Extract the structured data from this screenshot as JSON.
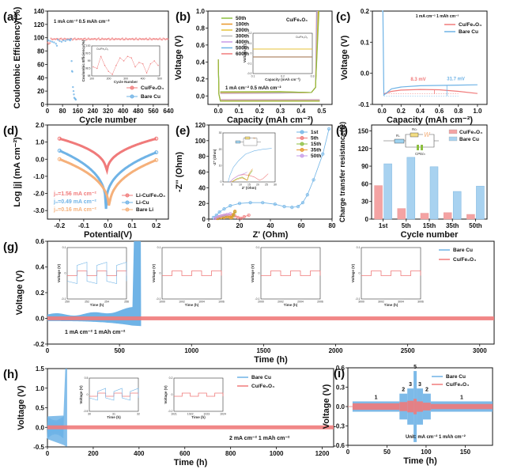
{
  "colors": {
    "blue": "#6fb3e6",
    "red": "#f07a7a",
    "orange": "#f5b07a",
    "green": "#8cbf3f",
    "gold": "#e6c23a",
    "purple": "#c79be8",
    "gray": "#bdbdbd",
    "darkorange": "#e8962a"
  },
  "chart_data": [
    {
      "id": "a",
      "panel_label": "(a)",
      "type": "scatter",
      "xlabel": "Cycle number",
      "ylabel": "Coulombic Efficiency(%)",
      "xlim": [
        0,
        640
      ],
      "ylim": [
        0,
        140
      ],
      "xticks": [
        0,
        80,
        160,
        240,
        320,
        400,
        480,
        560,
        640
      ],
      "yticks": [
        0,
        20,
        40,
        60,
        80,
        100,
        120,
        140
      ],
      "annotation": "1 mA cm⁻²  0.5 mAh cm⁻²",
      "series": [
        {
          "name": "Cu/Fe₃O₄",
          "color": "#f07a7a",
          "x_range": [
            1,
            640
          ],
          "mean": 98,
          "values_note": "≈97.5-99.5 stable"
        },
        {
          "name": "Bare Cu",
          "color": "#6fb3e6",
          "points": [
            [
              5,
              96
            ],
            [
              15,
              95
            ],
            [
              25,
              94
            ],
            [
              35,
              93
            ],
            [
              45,
              91
            ],
            [
              50,
              88
            ],
            [
              55,
              97
            ],
            [
              65,
              95
            ],
            [
              75,
              94
            ],
            [
              85,
              96
            ],
            [
              95,
              95
            ],
            [
              105,
              97
            ],
            [
              115,
              97
            ],
            [
              120,
              96
            ],
            [
              125,
              98
            ],
            [
              128,
              65
            ],
            [
              130,
              50
            ],
            [
              132,
              49
            ],
            [
              135,
              26
            ],
            [
              138,
              20
            ],
            [
              140,
              15
            ],
            [
              142,
              10
            ],
            [
              145,
              9
            ],
            [
              148,
              8
            ],
            [
              150,
              7
            ]
          ]
        }
      ],
      "inset": {
        "legend": "Cu/Fe₃O₄",
        "xlabel": "Cycle Number",
        "ylabel": "Coulombic Efficiency(%)",
        "xticks": [
          100,
          200,
          300,
          400,
          500
        ],
        "yticks": [
          98.0,
          98.5,
          99.0,
          99.5,
          100.0
        ],
        "values": [
          98.6,
          98.5,
          99.3,
          98.7,
          98.3,
          98.1,
          98.7,
          99.2,
          99.0,
          99.3,
          99.2,
          98.6,
          98.9,
          98.8,
          98.2,
          98.8,
          99.0,
          98.7
        ]
      }
    },
    {
      "id": "b",
      "panel_label": "(b)",
      "type": "line",
      "xlabel": "Capacity (mAh cm⁻²)",
      "ylabel": "Voltage (V)",
      "xlim": [
        -0.05,
        0.55
      ],
      "ylim": [
        -0.1,
        1.0
      ],
      "xticks": [
        0.0,
        0.1,
        0.2,
        0.3,
        0.4,
        0.5
      ],
      "yticks": [
        0.0,
        0.2,
        0.4,
        0.6,
        0.8,
        1.0
      ],
      "title": "Cu/Fe₃O₄",
      "annotation": "1  mA cm⁻² 0.5 mAh cm⁻²",
      "series": [
        {
          "name": "50th",
          "color": "#8cbf3f"
        },
        {
          "name": "100th",
          "color": "#e8962a"
        },
        {
          "name": "200th",
          "color": "#e6c23a"
        },
        {
          "name": "300th",
          "color": "#bdbdbd"
        },
        {
          "name": "400th",
          "color": "#c79be8"
        },
        {
          "name": "500th",
          "color": "#6fb3e6"
        },
        {
          "name": "600th",
          "color": "#f07a7a"
        }
      ],
      "plating_voltage": -0.045,
      "stripping_voltage": 0.035,
      "inset": {
        "title": "Cu/Fe₃O₄",
        "xlabel": "Capacity (mAh cm⁻²)",
        "ylabel": "Voltage (V)",
        "xticks": [
          0.1,
          0.2,
          0.3
        ],
        "yticks": [
          -0.2,
          -0.1,
          0.0,
          0.1,
          0.2
        ]
      }
    },
    {
      "id": "c",
      "panel_label": "(c)",
      "type": "line",
      "xlabel": "Capacity (mAh cm⁻²)",
      "ylabel": "Voltage (V)",
      "xlim": [
        -0.1,
        1.1
      ],
      "ylim": [
        -0.1,
        0.2
      ],
      "xticks": [
        0.0,
        0.2,
        0.4,
        0.6,
        0.8,
        1.0
      ],
      "yticks": [
        -0.1,
        0.0,
        0.1,
        0.2
      ],
      "annotation": "1 mA cm⁻²  1 mAh cm⁻²",
      "labels": [
        "8.3 mV",
        "31.7 mV"
      ],
      "series": [
        {
          "name": "Cu/Fe₃O₄",
          "color": "#f07a7a",
          "x": [
            0.02,
            0.1,
            0.2,
            0.4,
            0.6,
            0.8,
            1.0
          ],
          "y": [
            -0.066,
            -0.058,
            -0.054,
            -0.052,
            -0.053,
            -0.058,
            -0.065
          ]
        },
        {
          "name": "Bare Cu",
          "color": "#6fb3e6",
          "x": [
            0.0,
            0.01,
            0.02,
            0.1,
            0.2,
            0.4,
            0.6,
            0.8,
            1.0
          ],
          "y": [
            0.2,
            0.2,
            -0.07,
            -0.05,
            -0.044,
            -0.04,
            -0.039,
            -0.038,
            -0.037
          ]
        }
      ]
    },
    {
      "id": "d",
      "panel_label": "(d)",
      "type": "line",
      "xlabel": "Potential(V)",
      "ylabel": "Log |j| (mA cm⁻²)",
      "xlim": [
        -0.25,
        0.25
      ],
      "ylim": [
        -3.5,
        2.0
      ],
      "xticks": [
        -0.2,
        -0.1,
        0.0,
        0.1,
        0.2
      ],
      "yticks": [
        -3.0,
        -2.0,
        -1.0,
        0.0,
        1.0,
        2.0
      ],
      "annotations": [
        "j₀=1.56 mA cm⁻²",
        "j₀=0.49 mA cm⁻²",
        "j₀=0.16 mA cm⁻²"
      ],
      "series": [
        {
          "name": "Li-Cu/Fe₃O₄",
          "color": "#f07a7a",
          "left": 1.2,
          "right": 1.2,
          "min": -1.0,
          "center": -0.005
        },
        {
          "name": "Li-Cu",
          "color": "#6fb3e6",
          "left": 0.5,
          "right": 0.4,
          "min": -2.9,
          "center": -0.008
        },
        {
          "name": "Bare Li",
          "color": "#f5b07a",
          "left": 0.0,
          "right": -0.05,
          "min": -3.2,
          "center": 0.005
        }
      ]
    },
    {
      "id": "e",
      "panel_label": "(e)",
      "type": "scatter",
      "xlabel": "Z' (Ohm)",
      "ylabel": "-Z'' (Ohm)",
      "xlim": [
        0,
        80
      ],
      "ylim": [
        0,
        120
      ],
      "xticks": [
        0,
        20,
        40,
        60,
        80
      ],
      "yticks": [
        0,
        20,
        40,
        60,
        80,
        100,
        120
      ],
      "series": [
        {
          "name": "1st",
          "color": "#6fb3e6",
          "x": [
            3,
            5,
            7,
            10,
            14,
            20,
            27,
            35,
            43,
            49,
            54,
            58,
            61,
            64,
            68,
            74,
            78
          ],
          "y": [
            2,
            5,
            9,
            13,
            17,
            20,
            21,
            21,
            19,
            16,
            15,
            16,
            21,
            31,
            50,
            83,
            115
          ]
        },
        {
          "name": "5th",
          "color": "#f07a7a",
          "x": [
            5,
            7,
            9,
            11,
            13,
            15,
            17,
            19,
            21,
            23,
            26
          ],
          "y": [
            1,
            3,
            4,
            5,
            5,
            5,
            4,
            2,
            1,
            3,
            5
          ]
        },
        {
          "name": "15th",
          "color": "#8cbf3f",
          "x": [
            6,
            8,
            10,
            12,
            14,
            15,
            16,
            17
          ],
          "y": [
            1,
            2,
            3,
            3,
            2,
            2,
            5,
            9
          ]
        },
        {
          "name": "35th",
          "color": "#e8962a",
          "x": [
            6,
            8,
            10,
            12,
            14,
            15,
            16,
            17
          ],
          "y": [
            1,
            2,
            2,
            3,
            2,
            2,
            6,
            10
          ]
        },
        {
          "name": "50th",
          "color": "#c79be8",
          "x": [
            4,
            6,
            8,
            10,
            12,
            14
          ],
          "y": [
            1,
            3,
            4,
            5,
            6,
            7
          ]
        }
      ],
      "inset": {
        "xlabel": "Z' (Ohm)",
        "ylabel": "-Z'' (Ohm)",
        "xticks": [
          0,
          5,
          10,
          15,
          20,
          25,
          30
        ],
        "yticks": [
          0,
          10,
          20,
          30
        ],
        "circuit": [
          "Rₛ",
          "Rᴄₜ",
          "W",
          "CPEᴅₗ"
        ]
      }
    },
    {
      "id": "f",
      "panel_label": "(f)",
      "type": "bar",
      "xlabel": "Cycle number",
      "ylabel": "Charge transfer resistance(Ω)",
      "ylim": [
        0,
        160
      ],
      "yticks": [
        0,
        30,
        60,
        90,
        120,
        150
      ],
      "categories": [
        "1st",
        "5th",
        "15th",
        "35th",
        "50th"
      ],
      "series": [
        {
          "name": "Cu/Fe₃O₄",
          "color": "#f4a3a3",
          "values": [
            57,
            18,
            10,
            11,
            8
          ]
        },
        {
          "name": "Bare Cu",
          "color": "#a8d2f0",
          "values": [
            94,
            105,
            89,
            47,
            56
          ]
        }
      ],
      "circuit": {
        "rs": "Rₛ",
        "rct": "Rᴄₜ",
        "w": "W",
        "cpe": "CPEᴅₗ"
      }
    },
    {
      "id": "g",
      "panel_label": "(g)",
      "type": "line",
      "xlabel": "Time (h)",
      "ylabel": "Voltage (V)",
      "xlim": [
        0,
        3100
      ],
      "ylim": [
        -0.2,
        0.6
      ],
      "xticks": [
        0,
        500,
        1000,
        1500,
        2000,
        2500,
        3000
      ],
      "yticks": [
        -0.2,
        0.0,
        0.2,
        0.4,
        0.6
      ],
      "annotation": "1 mA cm⁻²    1 mAh cm⁻²",
      "series": [
        {
          "name": "Bare Cu",
          "color": "#6fb3e6",
          "end_time": 650,
          "amplitude_start": 0.03,
          "amplitude_end": 0.08
        },
        {
          "name": "Cu/Fe₃O₄",
          "color": "#f07a7a",
          "end_time": 3100,
          "amplitude": 0.015
        }
      ],
      "insets": [
        {
          "xticks": [
            250,
            252,
            254,
            256
          ],
          "xlabel": "Time (h)",
          "ylabel": "Voltage (V)",
          "yticks": [
            -0.1,
            0.0,
            0.1
          ],
          "bare_cu": true
        },
        {
          "xticks": [
            1000,
            1002,
            1004,
            1006
          ],
          "xlabel": "Time (h)",
          "ylabel": "Voltage (V)",
          "yticks": [
            -0.1,
            0.0,
            0.1
          ],
          "bare_cu": false
        },
        {
          "xticks": [
            2000,
            2002,
            2004,
            2006
          ],
          "xlabel": "Time (h)",
          "ylabel": "Voltage (V)",
          "yticks": [
            -0.1,
            0.0,
            0.1
          ],
          "bare_cu": false
        },
        {
          "xticks": [
            3000,
            3002,
            3004,
            3006
          ],
          "xlabel": "Time (h)",
          "ylabel": "Voltage (V)",
          "yticks": [
            -0.1,
            0.0,
            0.1
          ],
          "bare_cu": false
        }
      ]
    },
    {
      "id": "h",
      "panel_label": "(h)",
      "type": "line",
      "xlabel": "Time (h)",
      "ylabel": "Voltage (V)",
      "xlim": [
        0,
        1250
      ],
      "ylim": [
        -0.5,
        1.5
      ],
      "xticks": [
        0,
        200,
        400,
        600,
        800,
        1000,
        1200
      ],
      "yticks": [
        -0.5,
        0.0,
        0.5,
        1.0,
        1.5
      ],
      "annotation": "2 mA cm⁻²    1 mAh cm⁻²",
      "series": [
        {
          "name": "Bare Cu",
          "color": "#6fb3e6",
          "end_time": 85,
          "amplitude": 0.3
        },
        {
          "name": "Cu/Fe₃O₄",
          "color": "#f07a7a",
          "end_time": 1250,
          "amplitude": 0.03
        }
      ],
      "insets": [
        {
          "xticks": [
            30,
            31,
            32
          ],
          "xlabel": "Time (h)",
          "ylabel": "Voltage (V)",
          "yticks": [
            -0.5,
            0.0,
            0.5
          ],
          "bare_cu": true
        },
        {
          "xticks": [
            1021,
            1022,
            1023,
            1024
          ],
          "xlabel": "Time (h)",
          "ylabel": "Voltage (V)",
          "yticks": [
            -0.2,
            0.0,
            0.2
          ],
          "bare_cu": false
        }
      ]
    },
    {
      "id": "i",
      "panel_label": "(i)",
      "type": "line",
      "xlabel": "Time (h)",
      "ylabel": "Voltage (V)",
      "xlim": [
        0,
        185
      ],
      "ylim": [
        -0.6,
        0.6
      ],
      "xticks": [
        0,
        50,
        100,
        150
      ],
      "yticks": [
        -0.6,
        -0.3,
        0.0,
        0.3,
        0.6
      ],
      "annotation": "Unit:  mA cm⁻²    1 mAh cm⁻²",
      "rate_steps": [
        {
          "label": "1",
          "t0": 6,
          "t1": 66,
          "bare": 0.08,
          "fe": 0.05
        },
        {
          "label": "2",
          "t0": 66,
          "t1": 76,
          "bare": 0.2,
          "fe": 0.07
        },
        {
          "label": "3",
          "t0": 76,
          "t1": 84,
          "bare": 0.28,
          "fe": 0.09
        },
        {
          "label": "5",
          "t0": 84,
          "t1": 88,
          "bare": 0.55,
          "fe": 0.12
        },
        {
          "label": "3",
          "t0": 88,
          "t1": 96,
          "bare": 0.28,
          "fe": 0.08
        },
        {
          "label": "2",
          "t0": 96,
          "t1": 106,
          "bare": 0.2,
          "fe": 0.06
        },
        {
          "label": "1",
          "t0": 106,
          "t1": 185,
          "bare": 0.08,
          "fe": 0.04
        }
      ],
      "series": [
        {
          "name": "Bare Cu",
          "color": "#6fb3e6"
        },
        {
          "name": "Cu/Fe₃O₄",
          "color": "#f07a7a"
        }
      ]
    }
  ]
}
